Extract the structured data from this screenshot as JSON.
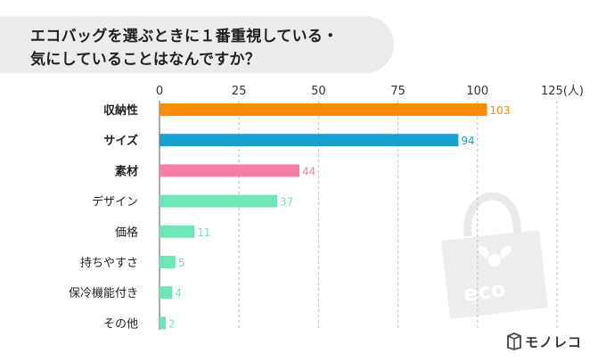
{
  "title": {
    "line1": "エコバッグを選ぶときに１番重視している・",
    "line2": "気にしていることはなんですか？"
  },
  "brand": {
    "name": "モノレコ",
    "icon": "box-logo-icon"
  },
  "watermark": {
    "text": "eco",
    "icon": "eco-bag-icon"
  },
  "chart_data": {
    "type": "bar",
    "orientation": "horizontal",
    "unit": "(人)",
    "xlim": [
      0,
      125
    ],
    "ticks": [
      0,
      25,
      50,
      75,
      100,
      125
    ],
    "grid": true,
    "categories": [
      "収納性",
      "サイズ",
      "素材",
      "デザイン",
      "価格",
      "持ちやすさ",
      "保冷機能付き",
      "その他"
    ],
    "values": [
      103,
      94,
      44,
      37,
      11,
      5,
      4,
      2
    ],
    "bold_categories": [
      true,
      true,
      true,
      false,
      false,
      false,
      false,
      false
    ],
    "colors": [
      "#fb8c00",
      "#17a0d2",
      "#f57fa3",
      "#6fe6b6",
      "#6fe6b6",
      "#6fe6b6",
      "#6fe6b6",
      "#6fe6b6"
    ]
  }
}
